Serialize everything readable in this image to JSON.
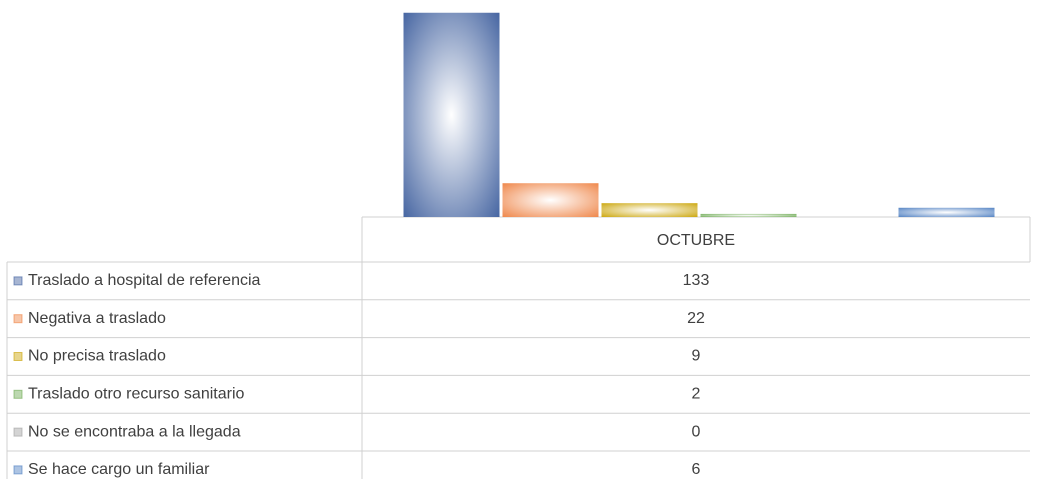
{
  "chart_data": {
    "type": "bar",
    "categories": [
      "OCTUBRE"
    ],
    "series": [
      {
        "name": "Traslado a hospital de referencia",
        "color": "#3b5c9c",
        "values": [
          133
        ]
      },
      {
        "name": "Negativa a traslado",
        "color": "#ee8040",
        "values": [
          22
        ]
      },
      {
        "name": "No precisa traslado",
        "color": "#c9a200",
        "values": [
          9
        ]
      },
      {
        "name": "Traslado otro recurso sanitario",
        "color": "#6aa84f",
        "values": [
          2
        ]
      },
      {
        "name": "No se encontraba a la llegada",
        "color": "#a0a0a0",
        "values": [
          0
        ]
      },
      {
        "name": "Se hace cargo un familiar",
        "color": "#4a7cc0",
        "values": [
          6
        ]
      }
    ],
    "ylim": [
      0,
      140
    ]
  }
}
